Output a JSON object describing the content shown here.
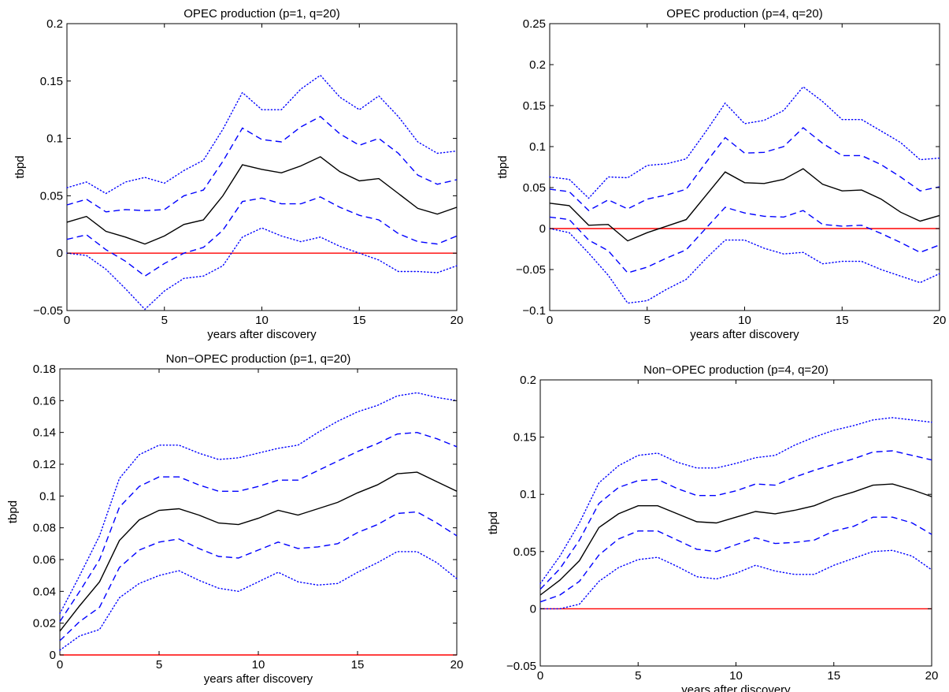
{
  "colors": {
    "median": "#000000",
    "band": "#0000ff",
    "zero": "#ff0000",
    "frame": "#000000"
  },
  "chart_data": [
    {
      "type": "line",
      "title": "OPEC production (p=1, q=20)",
      "xlabel": "years after discovery",
      "ylabel": "tbpd",
      "xlim": [
        0,
        20
      ],
      "ylim": [
        -0.05,
        0.2
      ],
      "x_ticks": [
        0,
        5,
        10,
        15,
        20
      ],
      "y_ticks": [
        -0.05,
        0,
        0.05,
        0.1,
        0.15,
        0.2
      ],
      "x_tick_labels": [
        "0",
        "5",
        "10",
        "15",
        "20"
      ],
      "y_tick_labels": [
        "−0.05",
        "0",
        "0.05",
        "0.1",
        "0.15",
        "0.2"
      ],
      "grid": false,
      "reference_line": 0,
      "x": [
        0,
        1,
        2,
        3,
        4,
        5,
        6,
        7,
        8,
        9,
        10,
        11,
        12,
        13,
        14,
        15,
        16,
        17,
        18,
        19,
        20
      ],
      "series": [
        {
          "role": "median",
          "style": "solid",
          "values": [
            0.027,
            0.032,
            0.019,
            0.014,
            0.008,
            0.015,
            0.025,
            0.029,
            0.05,
            0.077,
            0.073,
            0.07,
            0.076,
            0.084,
            0.071,
            0.063,
            0.065,
            0.052,
            0.039,
            0.034,
            0.04
          ]
        },
        {
          "role": "upper-inner",
          "style": "dashed",
          "values": [
            0.042,
            0.047,
            0.036,
            0.038,
            0.037,
            0.038,
            0.05,
            0.055,
            0.08,
            0.109,
            0.099,
            0.097,
            0.11,
            0.119,
            0.104,
            0.094,
            0.1,
            0.087,
            0.068,
            0.06,
            0.064
          ]
        },
        {
          "role": "lower-inner",
          "style": "dashed",
          "values": [
            0.012,
            0.016,
            0.003,
            -0.007,
            -0.02,
            -0.009,
            0.0,
            0.005,
            0.02,
            0.045,
            0.048,
            0.043,
            0.043,
            0.049,
            0.04,
            0.033,
            0.029,
            0.017,
            0.01,
            0.008,
            0.015
          ]
        },
        {
          "role": "upper-outer",
          "style": "dotted",
          "values": [
            0.057,
            0.062,
            0.052,
            0.062,
            0.066,
            0.061,
            0.072,
            0.081,
            0.108,
            0.14,
            0.125,
            0.125,
            0.143,
            0.155,
            0.136,
            0.125,
            0.137,
            0.119,
            0.097,
            0.087,
            0.089
          ]
        },
        {
          "role": "lower-outer",
          "style": "dotted",
          "values": [
            0.0,
            -0.002,
            -0.014,
            -0.031,
            -0.049,
            -0.033,
            -0.022,
            -0.02,
            -0.011,
            0.014,
            0.022,
            0.015,
            0.01,
            0.014,
            0.006,
            0.0,
            -0.006,
            -0.016,
            -0.016,
            -0.017,
            -0.011
          ]
        }
      ]
    },
    {
      "type": "line",
      "title": "OPEC production (p=4, q=20)",
      "xlabel": "years after discovery",
      "ylabel": "tbpd",
      "xlim": [
        0,
        20
      ],
      "ylim": [
        -0.1,
        0.25
      ],
      "x_ticks": [
        0,
        5,
        10,
        15,
        20
      ],
      "y_ticks": [
        -0.1,
        -0.05,
        0,
        0.05,
        0.1,
        0.15,
        0.2,
        0.25
      ],
      "x_tick_labels": [
        "0",
        "5",
        "10",
        "15",
        "20"
      ],
      "y_tick_labels": [
        "−0.1",
        "−0.05",
        "0",
        "0.05",
        "0.1",
        "0.15",
        "0.2",
        "0.25"
      ],
      "grid": false,
      "reference_line": 0,
      "x": [
        0,
        1,
        2,
        3,
        4,
        5,
        6,
        7,
        8,
        9,
        10,
        11,
        12,
        13,
        14,
        15,
        16,
        17,
        18,
        19,
        20
      ],
      "series": [
        {
          "role": "median",
          "style": "solid",
          "values": [
            0.031,
            0.028,
            0.004,
            0.005,
            -0.015,
            -0.005,
            0.003,
            0.011,
            0.04,
            0.069,
            0.056,
            0.055,
            0.06,
            0.073,
            0.054,
            0.046,
            0.047,
            0.036,
            0.02,
            0.009,
            0.016
          ]
        },
        {
          "role": "upper-inner",
          "style": "dashed",
          "values": [
            0.048,
            0.045,
            0.022,
            0.035,
            0.024,
            0.036,
            0.041,
            0.048,
            0.08,
            0.111,
            0.092,
            0.093,
            0.1,
            0.123,
            0.104,
            0.089,
            0.089,
            0.078,
            0.063,
            0.046,
            0.051
          ]
        },
        {
          "role": "lower-inner",
          "style": "dashed",
          "values": [
            0.014,
            0.011,
            -0.014,
            -0.027,
            -0.054,
            -0.047,
            -0.036,
            -0.026,
            0.0,
            0.026,
            0.019,
            0.015,
            0.014,
            0.022,
            0.005,
            0.003,
            0.004,
            -0.006,
            -0.017,
            -0.029,
            -0.02
          ]
        },
        {
          "role": "upper-outer",
          "style": "dotted",
          "values": [
            0.063,
            0.06,
            0.037,
            0.063,
            0.062,
            0.077,
            0.079,
            0.085,
            0.118,
            0.153,
            0.128,
            0.132,
            0.144,
            0.173,
            0.155,
            0.133,
            0.133,
            0.119,
            0.105,
            0.084,
            0.086
          ]
        },
        {
          "role": "lower-outer",
          "style": "dotted",
          "values": [
            0.0,
            -0.005,
            -0.03,
            -0.057,
            -0.091,
            -0.088,
            -0.074,
            -0.062,
            -0.037,
            -0.014,
            -0.014,
            -0.024,
            -0.031,
            -0.029,
            -0.043,
            -0.04,
            -0.04,
            -0.05,
            -0.058,
            -0.066,
            -0.055
          ]
        }
      ]
    },
    {
      "type": "line",
      "title": "Non−OPEC production (p=1, q=20)",
      "xlabel": "years after discovery",
      "ylabel": "tbpd",
      "xlim": [
        0,
        20
      ],
      "ylim": [
        0,
        0.18
      ],
      "x_ticks": [
        0,
        5,
        10,
        15,
        20
      ],
      "y_ticks": [
        0,
        0.02,
        0.04,
        0.06,
        0.08,
        0.1,
        0.12,
        0.14,
        0.16,
        0.18
      ],
      "x_tick_labels": [
        "0",
        "5",
        "10",
        "15",
        "20"
      ],
      "y_tick_labels": [
        "0",
        "0.02",
        "0.04",
        "0.06",
        "0.08",
        "0.1",
        "0.12",
        "0.14",
        "0.16",
        "0.18"
      ],
      "grid": false,
      "reference_line": 0,
      "x": [
        0,
        1,
        2,
        3,
        4,
        5,
        6,
        7,
        8,
        9,
        10,
        11,
        12,
        13,
        14,
        15,
        16,
        17,
        18,
        19,
        20
      ],
      "series": [
        {
          "role": "median",
          "style": "solid",
          "values": [
            0.015,
            0.031,
            0.046,
            0.072,
            0.085,
            0.091,
            0.092,
            0.088,
            0.083,
            0.082,
            0.086,
            0.091,
            0.088,
            0.092,
            0.096,
            0.102,
            0.107,
            0.114,
            0.115,
            0.109,
            0.103
          ]
        },
        {
          "role": "upper-inner",
          "style": "dashed",
          "values": [
            0.021,
            0.04,
            0.06,
            0.093,
            0.106,
            0.112,
            0.112,
            0.107,
            0.103,
            0.103,
            0.106,
            0.11,
            0.11,
            0.116,
            0.122,
            0.128,
            0.133,
            0.139,
            0.14,
            0.136,
            0.131
          ]
        },
        {
          "role": "lower-inner",
          "style": "dashed",
          "values": [
            0.009,
            0.021,
            0.03,
            0.055,
            0.066,
            0.071,
            0.073,
            0.067,
            0.062,
            0.061,
            0.066,
            0.071,
            0.067,
            0.068,
            0.07,
            0.077,
            0.082,
            0.089,
            0.09,
            0.083,
            0.075
          ]
        },
        {
          "role": "upper-outer",
          "style": "dotted",
          "values": [
            0.026,
            0.05,
            0.075,
            0.111,
            0.126,
            0.132,
            0.132,
            0.127,
            0.123,
            0.124,
            0.127,
            0.13,
            0.132,
            0.14,
            0.147,
            0.153,
            0.157,
            0.163,
            0.165,
            0.162,
            0.16
          ]
        },
        {
          "role": "lower-outer",
          "style": "dotted",
          "values": [
            0.003,
            0.012,
            0.016,
            0.036,
            0.045,
            0.05,
            0.053,
            0.047,
            0.042,
            0.04,
            0.046,
            0.052,
            0.046,
            0.044,
            0.045,
            0.052,
            0.058,
            0.065,
            0.065,
            0.058,
            0.048
          ]
        }
      ]
    },
    {
      "type": "line",
      "title": "Non−OPEC production (p=4, q=20)",
      "xlabel": "years after discovery",
      "ylabel": "tbpd",
      "xlim": [
        0,
        20
      ],
      "ylim": [
        -0.05,
        0.2
      ],
      "x_ticks": [
        0,
        5,
        10,
        15,
        20
      ],
      "y_ticks": [
        -0.05,
        0,
        0.05,
        0.1,
        0.15,
        0.2
      ],
      "x_tick_labels": [
        "0",
        "5",
        "10",
        "15",
        "20"
      ],
      "y_tick_labels": [
        "−0.05",
        "0",
        "0.05",
        "0.1",
        "0.15",
        "0.2"
      ],
      "grid": false,
      "reference_line": 0,
      "x": [
        0,
        1,
        2,
        3,
        4,
        5,
        6,
        7,
        8,
        9,
        10,
        11,
        12,
        13,
        14,
        15,
        16,
        17,
        18,
        19,
        20
      ],
      "series": [
        {
          "role": "median",
          "style": "solid",
          "values": [
            0.012,
            0.025,
            0.042,
            0.071,
            0.083,
            0.09,
            0.09,
            0.083,
            0.076,
            0.075,
            0.08,
            0.085,
            0.083,
            0.086,
            0.09,
            0.097,
            0.102,
            0.108,
            0.109,
            0.104,
            0.098
          ]
        },
        {
          "role": "upper-inner",
          "style": "dashed",
          "values": [
            0.017,
            0.035,
            0.06,
            0.092,
            0.106,
            0.112,
            0.113,
            0.105,
            0.099,
            0.099,
            0.103,
            0.109,
            0.108,
            0.115,
            0.121,
            0.126,
            0.131,
            0.137,
            0.138,
            0.134,
            0.13
          ]
        },
        {
          "role": "lower-inner",
          "style": "dashed",
          "values": [
            0.006,
            0.012,
            0.024,
            0.047,
            0.061,
            0.068,
            0.068,
            0.06,
            0.052,
            0.05,
            0.056,
            0.062,
            0.057,
            0.058,
            0.06,
            0.068,
            0.072,
            0.08,
            0.08,
            0.075,
            0.065
          ]
        },
        {
          "role": "upper-outer",
          "style": "dotted",
          "values": [
            0.022,
            0.046,
            0.075,
            0.11,
            0.125,
            0.134,
            0.136,
            0.128,
            0.123,
            0.123,
            0.127,
            0.132,
            0.134,
            0.143,
            0.15,
            0.156,
            0.16,
            0.165,
            0.167,
            0.165,
            0.163
          ]
        },
        {
          "role": "lower-outer",
          "style": "dotted",
          "values": [
            0.0,
            0.0,
            0.004,
            0.024,
            0.036,
            0.043,
            0.045,
            0.037,
            0.028,
            0.026,
            0.031,
            0.038,
            0.033,
            0.03,
            0.03,
            0.038,
            0.044,
            0.05,
            0.051,
            0.046,
            0.034
          ]
        }
      ]
    }
  ]
}
